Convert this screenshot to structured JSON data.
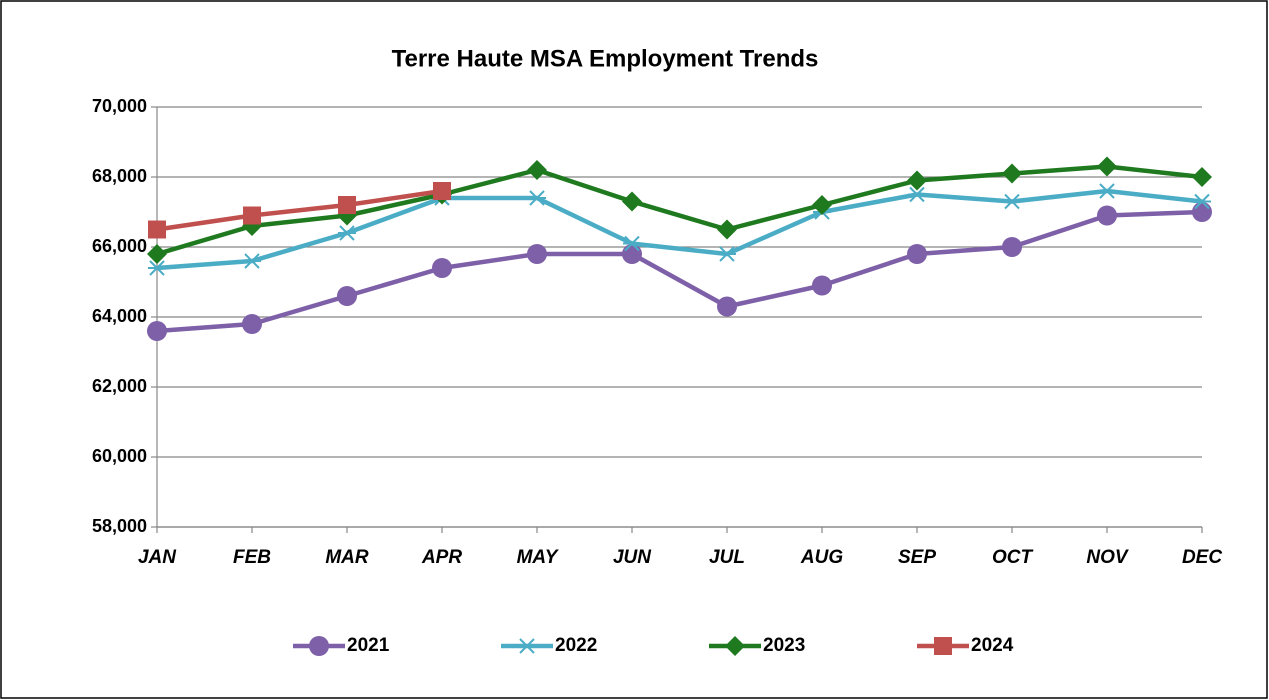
{
  "chart_data": {
    "type": "line",
    "title": "Terre Haute MSA Employment Trends",
    "categories": [
      "JAN",
      "FEB",
      "MAR",
      "APR",
      "MAY",
      "JUN",
      "JUL",
      "AUG",
      "SEP",
      "OCT",
      "NOV",
      "DEC"
    ],
    "series": [
      {
        "name": "2021",
        "color": "#7e60a8",
        "marker": "circle",
        "values": [
          63600,
          63800,
          64600,
          65400,
          65800,
          65800,
          64300,
          64900,
          65800,
          66000,
          66900,
          67000
        ]
      },
      {
        "name": "2022",
        "color": "#4bacc6",
        "marker": "asterisk",
        "values": [
          65400,
          65600,
          66400,
          67400,
          67400,
          66100,
          65800,
          67000,
          67500,
          67300,
          67600,
          67300
        ]
      },
      {
        "name": "2023",
        "color": "#1f7a1f",
        "marker": "diamond",
        "values": [
          65800,
          66600,
          66900,
          67500,
          68200,
          67300,
          66500,
          67200,
          67900,
          68100,
          68300,
          68000
        ]
      },
      {
        "name": "2024",
        "color": "#c0504d",
        "marker": "square",
        "values": [
          66500,
          66900,
          67200,
          67600,
          null,
          null,
          null,
          null,
          null,
          null,
          null,
          null
        ]
      }
    ],
    "ylim": [
      58000,
      70000
    ],
    "yticks": [
      {
        "value": 58000,
        "label": "58,000"
      },
      {
        "value": 60000,
        "label": "60,000"
      },
      {
        "value": 62000,
        "label": "62,000"
      },
      {
        "value": 64000,
        "label": "64,000"
      },
      {
        "value": 66000,
        "label": "66,000"
      },
      {
        "value": 68000,
        "label": "68,000"
      },
      {
        "value": 70000,
        "label": "70,000"
      }
    ],
    "grid": true,
    "legend": "bottom"
  }
}
